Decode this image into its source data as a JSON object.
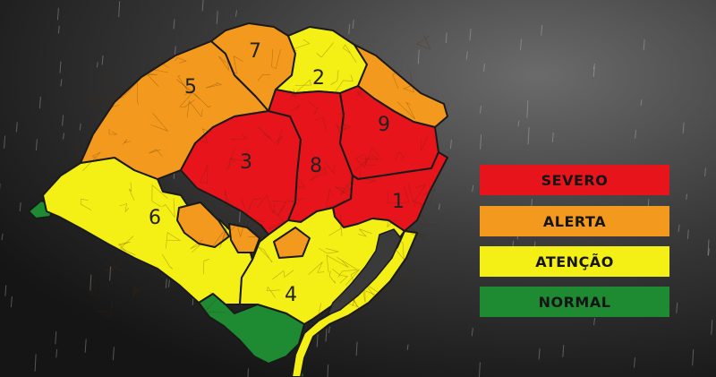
{
  "map": {
    "regions": [
      {
        "number": "1",
        "level": "severo"
      },
      {
        "number": "2",
        "level": "atencao"
      },
      {
        "number": "3",
        "level": "severo"
      },
      {
        "number": "4",
        "level": "atencao"
      },
      {
        "number": "5",
        "level": "alerta"
      },
      {
        "number": "6",
        "level": "atencao"
      },
      {
        "number": "7",
        "level": "alerta"
      },
      {
        "number": "8",
        "level": "severo"
      },
      {
        "number": "9",
        "level": "severo"
      }
    ]
  },
  "legend": {
    "items": [
      {
        "key": "severo",
        "label": "SEVERO",
        "color": "#e8141c"
      },
      {
        "key": "alerta",
        "label": "ALERTA",
        "color": "#f39a1e"
      },
      {
        "key": "atencao",
        "label": "ATENÇÃO",
        "color": "#f4ef14"
      },
      {
        "key": "normal",
        "label": "NORMAL",
        "color": "#1e8a32"
      }
    ]
  },
  "colors": {
    "background": "#2b2b2b",
    "outline": "#1a1a1a",
    "lagoon": "#3a3a3a"
  }
}
